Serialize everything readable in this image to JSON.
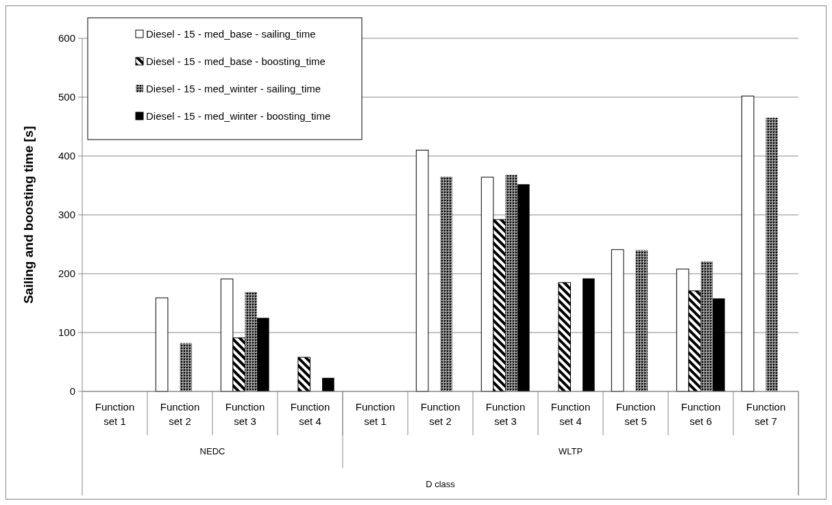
{
  "chart_data": {
    "type": "bar",
    "ylabel": "Sailing and boosting time [s]",
    "categories": [
      "Function set 1",
      "Function set 2",
      "Function set 3",
      "Function set 4",
      "Function set 1",
      "Function set 2",
      "Function set 3",
      "Function set 4",
      "Function set 5",
      "Function set 6",
      "Function set 7"
    ],
    "series": [
      {
        "name": "Diesel - 15 - med_base - sailing_time",
        "color": "#ffffff",
        "values": [
          null,
          159,
          191,
          null,
          null,
          410,
          364,
          null,
          241,
          208,
          502
        ]
      },
      {
        "name": "Diesel - 15 - med_base - boosting_time",
        "color": "#000000",
        "values": [
          null,
          null,
          91,
          58,
          null,
          null,
          292,
          185,
          null,
          171,
          null
        ]
      },
      {
        "name": "Diesel - 15 - med_winter - sailing_time",
        "color": "#808080",
        "values": [
          null,
          82,
          169,
          null,
          null,
          365,
          368,
          null,
          240,
          221,
          465
        ]
      },
      {
        "name": "Diesel - 15 - med_winter - boosting_time",
        "color": "#000000",
        "values": [
          null,
          null,
          125,
          23,
          null,
          null,
          352,
          192,
          null,
          158,
          null
        ]
      }
    ],
    "ylim": [
      0,
      600
    ],
    "yticks": [
      0,
      100,
      200,
      300,
      400,
      500,
      600
    ],
    "grid": "y",
    "legend": "top left",
    "annotations": [
      "NEDC",
      "WLTP",
      "D class"
    ]
  }
}
